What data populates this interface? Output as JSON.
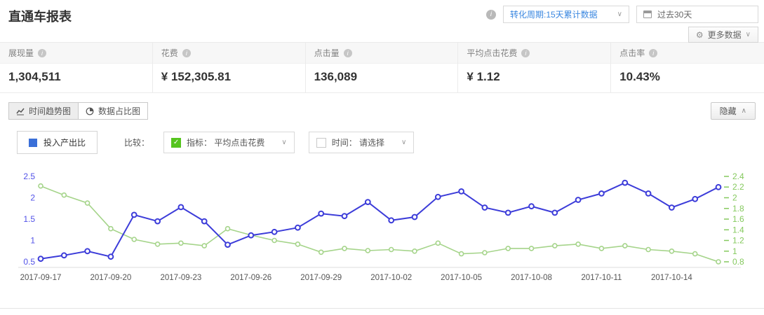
{
  "header": {
    "title": "直通车报表",
    "conversion_dropdown": "转化周期:15天累计数据",
    "date_range": "过去30天",
    "more_data": "更多数据"
  },
  "metrics": [
    {
      "label": "展现量",
      "value": "1,304,511"
    },
    {
      "label": "花费",
      "value": "¥ 152,305.81"
    },
    {
      "label": "点击量",
      "value": "136,089"
    },
    {
      "label": "平均点击花费",
      "value": "¥ 1.12"
    },
    {
      "label": "点击率",
      "value": "10.43%"
    }
  ],
  "chart_panel": {
    "tabs": [
      {
        "label": "时间趋势图"
      },
      {
        "label": "数据占比图"
      }
    ],
    "hide_button": "隐藏",
    "legend_series": "投入产出比",
    "compare_label": "比较：",
    "metric_checkbox": "指标： 平均点击花费",
    "time_checkbox": "时间： 请选择"
  },
  "icons": {
    "info": "i",
    "chevron_down": "∨",
    "caret_up": "∧",
    "gear": "⚙",
    "check": "✓"
  },
  "colors": {
    "roi_line": "#3c3cd9",
    "cpc_line": "#a5d48a",
    "legend_swatch": "#3a6fd8",
    "accent_blue_text": "#3a87e0"
  },
  "chart_data": {
    "type": "line",
    "title": "时间趋势图",
    "x": [
      "2017-09-17",
      "2017-09-18",
      "2017-09-19",
      "2017-09-20",
      "2017-09-21",
      "2017-09-22",
      "2017-09-23",
      "2017-09-24",
      "2017-09-25",
      "2017-09-26",
      "2017-09-27",
      "2017-09-28",
      "2017-09-29",
      "2017-09-30",
      "2017-10-01",
      "2017-10-02",
      "2017-10-03",
      "2017-10-04",
      "2017-10-05",
      "2017-10-06",
      "2017-10-07",
      "2017-10-08",
      "2017-10-09",
      "2017-10-10",
      "2017-10-11",
      "2017-10-12",
      "2017-10-13",
      "2017-10-14",
      "2017-10-15",
      "2017-10-16"
    ],
    "tick_every": 3,
    "x_tick_labels": [
      "2017-09-17",
      "2017-09-20",
      "2017-09-23",
      "2017-09-26",
      "2017-09-29",
      "2017-10-02",
      "2017-10-05",
      "2017-10-08",
      "2017-10-11",
      "2017-10-14"
    ],
    "series": [
      {
        "name": "投入产出比",
        "axis": "left",
        "color": "#3c3cd9",
        "values": [
          0.57,
          0.65,
          0.75,
          0.62,
          1.6,
          1.45,
          1.78,
          1.45,
          0.9,
          1.12,
          1.2,
          1.3,
          1.63,
          1.57,
          1.9,
          1.47,
          1.55,
          2.02,
          2.15,
          1.77,
          1.65,
          1.8,
          1.65,
          1.95,
          2.1,
          2.35,
          2.1,
          1.77,
          1.97,
          2.25
        ]
      },
      {
        "name": "平均点击花费",
        "axis": "right",
        "color": "#a5d48a",
        "values": [
          2.22,
          2.05,
          1.9,
          1.42,
          1.22,
          1.13,
          1.15,
          1.1,
          1.42,
          1.3,
          1.2,
          1.13,
          0.98,
          1.05,
          1.01,
          1.03,
          1.0,
          1.15,
          0.95,
          0.97,
          1.05,
          1.05,
          1.1,
          1.13,
          1.05,
          1.1,
          1.03,
          1.0,
          0.95,
          0.8
        ]
      }
    ],
    "left_axis": {
      "min": 0.5,
      "max": 2.5,
      "ticks": [
        0.5,
        1,
        1.5,
        2,
        2.5
      ],
      "color": "#5252e8"
    },
    "right_axis": {
      "min": 0.8,
      "max": 2.4,
      "ticks": [
        0.8,
        1,
        1.2,
        1.4,
        1.6,
        1.8,
        2,
        2.2,
        2.4
      ],
      "color": "#85c95e"
    },
    "x_label_color": "#555",
    "grid": false,
    "legend_position": "top-left"
  }
}
